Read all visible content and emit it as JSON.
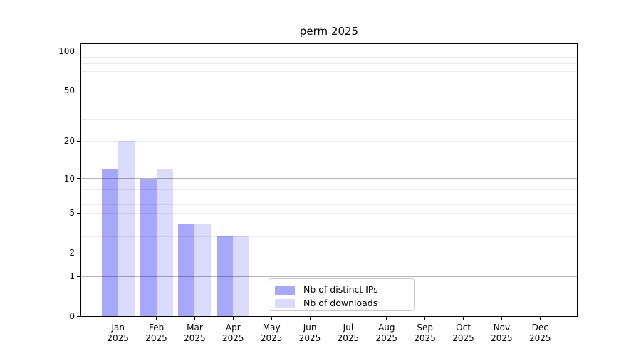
{
  "chart_data": {
    "type": "bar",
    "title": "perm 2025",
    "categories": [
      "Jan 2025",
      "Feb 2025",
      "Mar 2025",
      "Apr 2025",
      "May 2025",
      "Jun 2025",
      "Jul 2025",
      "Aug 2025",
      "Sep 2025",
      "Oct 2025",
      "Nov 2025",
      "Dec 2025"
    ],
    "series": [
      {
        "name": "Nb of distinct IPs",
        "color": "rgba(0,0,240,0.34)",
        "color_hex": "#a9a9f1",
        "values": [
          12,
          10,
          4,
          3,
          0,
          0,
          0,
          0,
          0,
          0,
          0,
          0
        ]
      },
      {
        "name": "Nb of downloads",
        "color": "rgba(0,0,240,0.14)",
        "color_hex": "#dcdcf8",
        "values": [
          20,
          12,
          4,
          3,
          0,
          0,
          0,
          0,
          0,
          0,
          0,
          0
        ]
      }
    ],
    "xlabel": "",
    "ylabel": "",
    "yscale": "log1p",
    "ylim": [
      0,
      113
    ],
    "ytick_labels": [
      0,
      1,
      2,
      5,
      10,
      20,
      50,
      100
    ],
    "grid": {
      "on": true,
      "strong_lines": [
        1,
        10,
        100
      ],
      "light_lines": [
        2,
        3,
        4,
        5,
        6,
        7,
        8,
        9,
        20,
        30,
        40,
        50,
        60,
        70,
        80,
        90,
        110
      ],
      "strong_color": "#b3b3b3",
      "light_color": "#eaeaea"
    },
    "legend": {
      "position": "lower center"
    },
    "axis_color": "#000000",
    "background": "#ffffff"
  }
}
